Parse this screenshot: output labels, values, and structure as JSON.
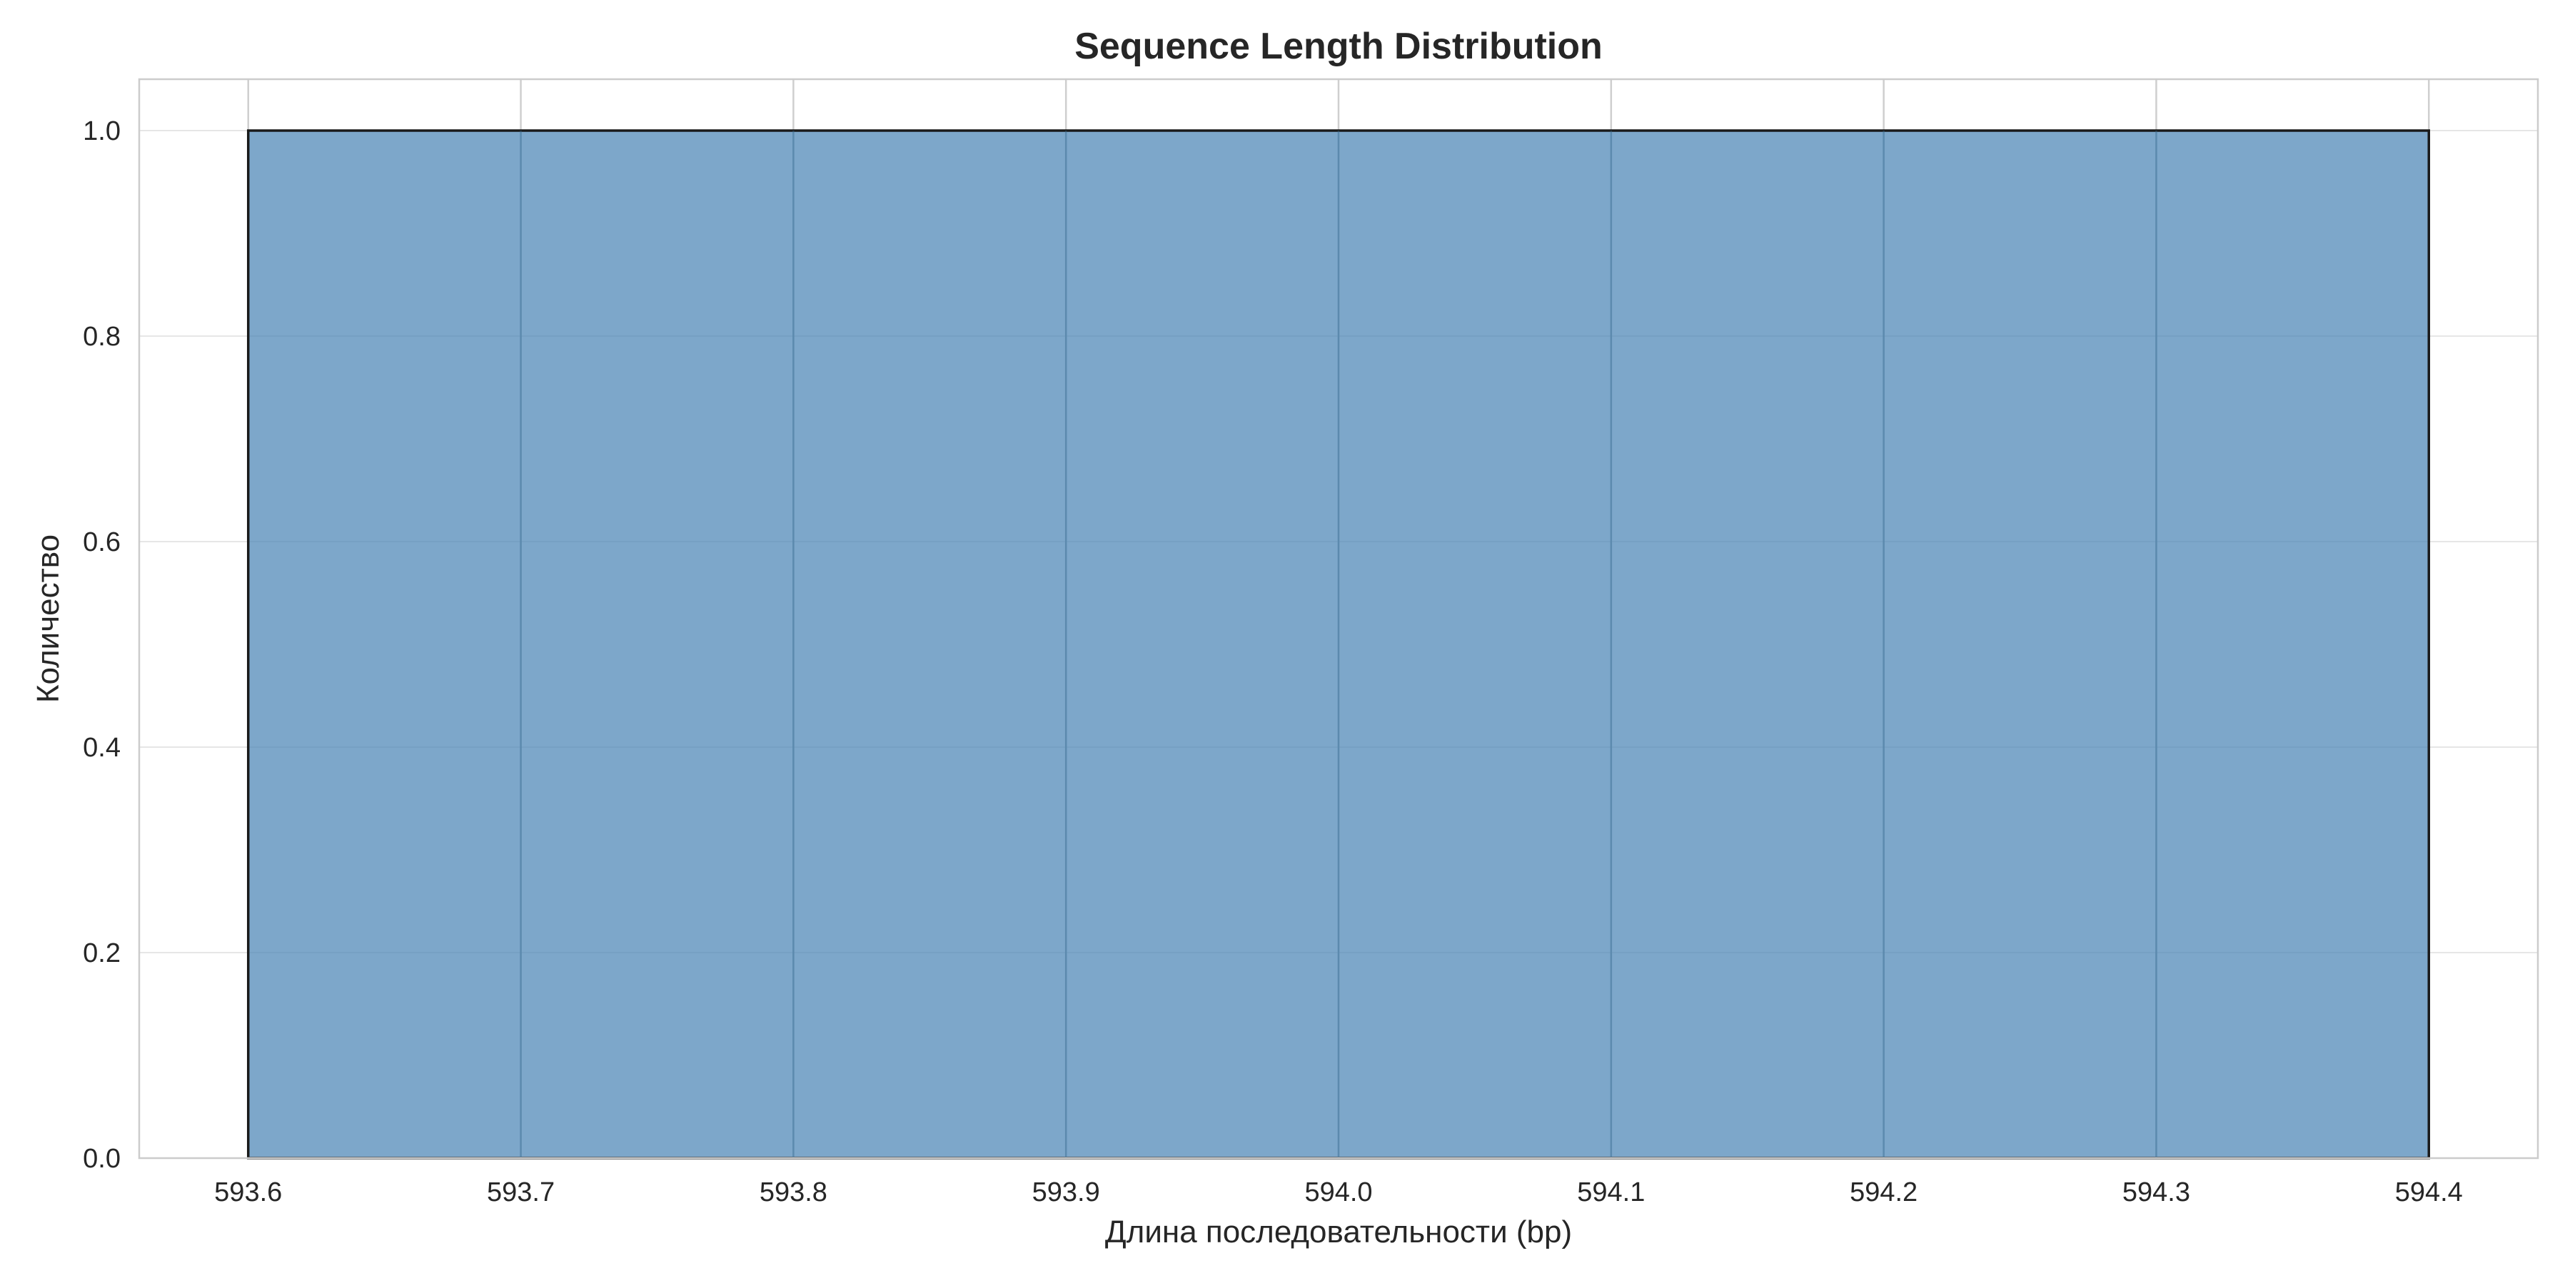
{
  "chart_data": {
    "type": "bar",
    "title": "Sequence Length Distribution",
    "xlabel": "Длина последовательности (bp)",
    "ylabel": "Количество",
    "xlim": [
      593.56,
      594.44
    ],
    "ylim": [
      0,
      1.05
    ],
    "x_ticks": [
      "593.6",
      "593.7",
      "593.8",
      "593.9",
      "594.0",
      "594.1",
      "594.2",
      "594.3",
      "594.4"
    ],
    "y_ticks": [
      "0.0",
      "0.2",
      "0.4",
      "0.6",
      "0.8",
      "1.0"
    ],
    "bins": [
      {
        "x_start": 593.6,
        "x_end": 594.4,
        "value": 1.0
      }
    ],
    "grid": true,
    "colors": {
      "bar_fill": "#4682b4",
      "bar_edge": "#1a1a1a",
      "grid": "#e6e6e6",
      "axis_frame": "#cccccc",
      "text": "#262626"
    }
  }
}
